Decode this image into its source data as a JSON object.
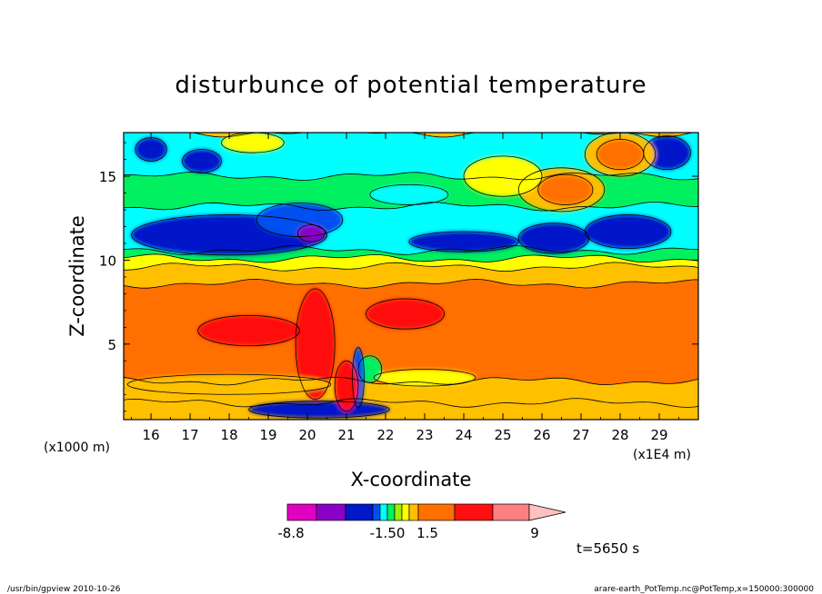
{
  "chart_data": {
    "type": "heatmap",
    "title": "disturbunce of potential temperature",
    "xlabel": "X-coordinate",
    "ylabel": "Z-coordinate",
    "x_unit": "(x1E4 m)",
    "y_unit": "(x1000 m)",
    "xlim": [
      15.3,
      30.0
    ],
    "ylim": [
      0.5,
      17.6
    ],
    "x_ticks": [
      16,
      17,
      18,
      19,
      20,
      21,
      22,
      23,
      24,
      25,
      26,
      27,
      28,
      29
    ],
    "y_ticks": [
      5,
      10,
      15
    ],
    "colorbar": {
      "labels": [
        {
          "text": "-8.8",
          "value": -8.8
        },
        {
          "text": "-1.50",
          "value": -1.5
        },
        {
          "text": "1.5",
          "value": 1.5
        },
        {
          "text": "9",
          "value": 9
        }
      ],
      "colors": [
        "#e000c0",
        "#8a00c8",
        "#0018c8",
        "#0050f0",
        "#00ffff",
        "#00f060",
        "#a0f000",
        "#ffff00",
        "#ffc000",
        "#ff7000",
        "#ff1010",
        "#ff8080",
        "#ffc0c0"
      ]
    },
    "annotation": "t=5650 s",
    "bands": [
      {
        "z0": 0.5,
        "z1": 1.5,
        "value": 1.0,
        "color": "#ffc000"
      },
      {
        "z0": 1.5,
        "z1": 2.8,
        "value": 1.3,
        "color": "#ffc000"
      },
      {
        "z0": 2.8,
        "z1": 8.6,
        "value": 4.0,
        "color": "#ff7000"
      },
      {
        "z0": 8.6,
        "z1": 9.6,
        "value": 2.0,
        "color": "#ffc000"
      },
      {
        "z0": 9.6,
        "z1": 10.1,
        "value": 0.8,
        "color": "#ffff00"
      },
      {
        "z0": 10.1,
        "z1": 10.6,
        "value": 0.2,
        "color": "#00f060"
      },
      {
        "z0": 10.6,
        "z1": 13.2,
        "value": -1.0,
        "color": "#00ffff"
      },
      {
        "z0": 13.2,
        "z1": 15.0,
        "value": 0.1,
        "color": "#00f060"
      },
      {
        "z0": 15.0,
        "z1": 17.6,
        "value": -0.5,
        "color": "#00ffff"
      }
    ],
    "features": [
      {
        "x": 18.5,
        "z": 5.8,
        "rx": 1.3,
        "rz": 0.9,
        "value": 6.0,
        "color": "#ff1010"
      },
      {
        "x": 20.2,
        "z": 5.0,
        "rx": 0.5,
        "rz": 3.3,
        "value": 6.5,
        "color": "#ff1010"
      },
      {
        "x": 22.5,
        "z": 6.8,
        "rx": 1.0,
        "rz": 0.9,
        "value": 6.0,
        "color": "#ff1010"
      },
      {
        "x": 18.0,
        "z": 11.5,
        "rx": 2.5,
        "rz": 1.2,
        "value": -3.5,
        "color": "#0018c8"
      },
      {
        "x": 19.8,
        "z": 12.4,
        "rx": 1.1,
        "rz": 1.0,
        "value": -3.0,
        "color": "#0050f0"
      },
      {
        "x": 20.1,
        "z": 11.6,
        "rx": 0.35,
        "rz": 0.5,
        "value": -6.0,
        "color": "#8a00c8"
      },
      {
        "x": 24.0,
        "z": 11.1,
        "rx": 1.4,
        "rz": 0.6,
        "value": -3.0,
        "color": "#0018c8"
      },
      {
        "x": 26.3,
        "z": 11.3,
        "rx": 0.9,
        "rz": 0.9,
        "value": -3.5,
        "color": "#0018c8"
      },
      {
        "x": 28.2,
        "z": 11.7,
        "rx": 1.1,
        "rz": 1.0,
        "value": -3.5,
        "color": "#0018c8"
      },
      {
        "x": 16.0,
        "z": 16.6,
        "rx": 0.4,
        "rz": 0.7,
        "value": -3.0,
        "color": "#0018c8"
      },
      {
        "x": 17.3,
        "z": 15.9,
        "rx": 0.5,
        "rz": 0.7,
        "value": -3.0,
        "color": "#0018c8"
      },
      {
        "x": 29.2,
        "z": 16.4,
        "rx": 0.6,
        "rz": 1.0,
        "value": -3.0,
        "color": "#0018c8"
      },
      {
        "x": 26.5,
        "z": 14.2,
        "rx": 1.1,
        "rz": 1.3,
        "value": 1.5,
        "color": "#ffc000"
      },
      {
        "x": 26.6,
        "z": 14.2,
        "rx": 0.7,
        "rz": 0.9,
        "value": 3.0,
        "color": "#ff7000"
      },
      {
        "x": 28.0,
        "z": 16.3,
        "rx": 0.9,
        "rz": 1.3,
        "value": 1.5,
        "color": "#ffc000"
      },
      {
        "x": 28.0,
        "z": 16.3,
        "rx": 0.6,
        "rz": 0.9,
        "value": 3.0,
        "color": "#ff7000"
      },
      {
        "x": 25.0,
        "z": 15.0,
        "rx": 1.0,
        "rz": 1.2,
        "value": 0.8,
        "color": "#ffff00"
      },
      {
        "x": 18.6,
        "z": 17.0,
        "rx": 0.8,
        "rz": 0.6,
        "value": 0.8,
        "color": "#ffff00"
      },
      {
        "x": 22.6,
        "z": 13.9,
        "rx": 1.0,
        "rz": 0.6,
        "value": -0.5,
        "color": "#00ffff"
      },
      {
        "x": 18.0,
        "z": 2.6,
        "rx": 2.6,
        "rz": 0.6,
        "value": 1.5,
        "color": "#ffc000"
      },
      {
        "x": 23.0,
        "z": 3.0,
        "rx": 1.3,
        "rz": 0.5,
        "value": 0.8,
        "color": "#ffff00"
      },
      {
        "x": 21.6,
        "z": 3.5,
        "rx": 0.3,
        "rz": 0.8,
        "value": 0.2,
        "color": "#00f060"
      },
      {
        "x": 21.3,
        "z": 3.0,
        "rx": 0.15,
        "rz": 1.8,
        "value": -1.5,
        "color": "#0050f0"
      },
      {
        "x": 20.3,
        "z": 1.1,
        "rx": 1.8,
        "rz": 0.5,
        "value": -3.0,
        "color": "#0018c8"
      },
      {
        "x": 21.0,
        "z": 2.5,
        "rx": 0.3,
        "rz": 1.5,
        "value": 6.0,
        "color": "#ff1010"
      }
    ]
  },
  "footer": {
    "left": "/usr/bin/gpview  2010-10-26",
    "right": "arare-earth_PotTemp.nc@PotTemp,x=150000:300000"
  }
}
